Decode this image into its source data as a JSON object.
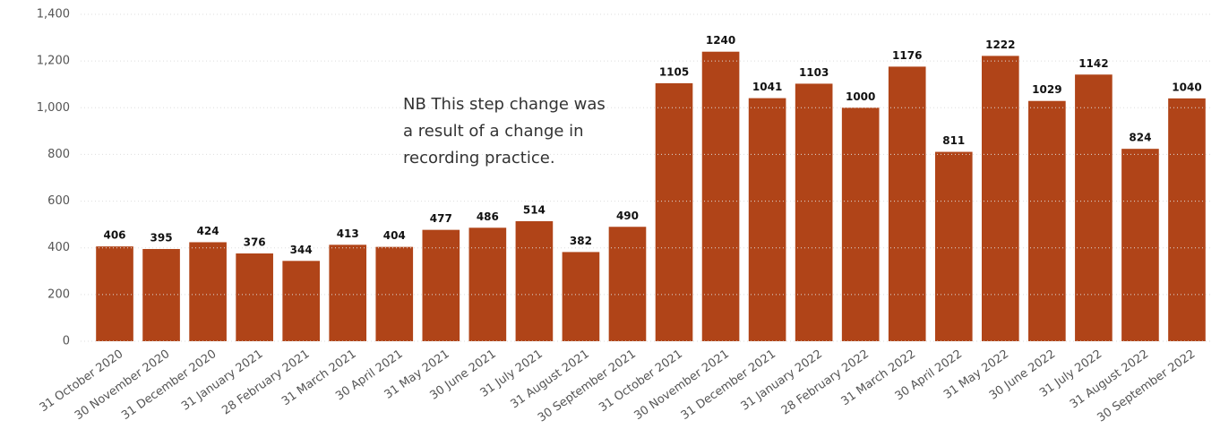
{
  "chart_data": {
    "type": "bar",
    "categories": [
      "31 October 2020",
      "30 November 2020",
      "31 December 2020",
      "31 January 2021",
      "28 February 2021",
      "31 March 2021",
      "30 April 2021",
      "31 May 2021",
      "30 June 2021",
      "31 July 2021",
      "31 August 2021",
      "30 September 2021",
      "31 October 2021",
      "30 November 2021",
      "31 December 2021",
      "31 January 2022",
      "28 February 2022",
      "31 March 2022",
      "30 April 2022",
      "31 May 2022",
      "30 June 2022",
      "31 July 2022",
      "31 August 2022",
      "30 September 2022"
    ],
    "values": [
      406,
      395,
      424,
      376,
      344,
      413,
      404,
      477,
      486,
      514,
      382,
      490,
      1105,
      1240,
      1041,
      1103,
      1000,
      1176,
      811,
      1222,
      1029,
      1142,
      824,
      1040
    ],
    "color": "#b04418",
    "ylim": [
      0,
      1400
    ],
    "yticks": [
      0,
      200,
      400,
      600,
      800,
      {
        "value": 1000,
        "label": "1,000"
      },
      {
        "value": 1200,
        "label": "1,200"
      },
      {
        "value": 1400,
        "label": "1,400"
      }
    ],
    "grid": true,
    "annotation": [
      "NB This step change was",
      "a result of a change in",
      "recording practice."
    ]
  }
}
